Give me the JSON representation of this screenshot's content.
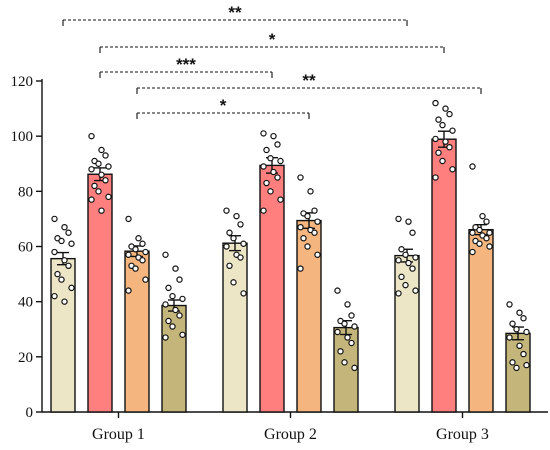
{
  "chart_data": {
    "type": "bar",
    "categories": [
      "Group 1",
      "Group 2",
      "Group 3"
    ],
    "ylim": [
      0,
      120
    ],
    "y_ticks": [
      "0",
      "20",
      "40",
      "60",
      "80",
      "100",
      "120"
    ],
    "grid": false,
    "legend": "none",
    "bar_colors": [
      "#ede6c6",
      "#ff7f7f",
      "#f4b67e",
      "#c4b57b"
    ],
    "series": [
      {
        "values": [
          55.6,
          61.2,
          56.7
        ],
        "error": [
          2.2,
          2.7,
          2.3
        ],
        "points": [
          [
            70,
            67,
            65,
            63,
            62,
            61,
            58,
            55,
            53,
            50,
            48,
            45,
            42,
            40
          ],
          [
            73,
            71,
            68,
            65,
            63,
            61,
            60,
            57,
            56,
            53,
            47,
            43
          ],
          [
            70,
            69,
            65,
            59,
            57,
            56,
            55,
            54,
            52,
            49,
            46,
            44,
            43
          ]
        ]
      },
      {
        "values": [
          86.2,
          89.4,
          98.9
        ],
        "error": [
          2.3,
          2.8,
          2.9
        ],
        "points": [
          [
            100,
            95,
            93,
            91,
            90,
            89,
            88,
            86,
            84,
            82,
            80,
            78,
            77,
            73
          ],
          [
            101,
            100,
            97,
            95,
            92,
            91,
            89,
            87,
            85,
            83,
            80,
            77,
            73
          ],
          [
            112,
            110,
            108,
            106,
            104,
            102,
            99,
            98,
            96,
            94,
            91,
            88,
            85
          ]
        ]
      },
      {
        "values": [
          58.3,
          69.4,
          66.1
        ],
        "error": [
          1.9,
          2.8,
          1.8
        ],
        "points": [
          [
            70,
            63,
            61,
            60,
            59,
            58,
            57,
            56,
            55,
            53,
            52,
            48,
            44
          ],
          [
            85,
            80,
            73,
            72,
            71,
            69,
            67,
            66,
            65,
            63,
            60,
            57,
            52
          ],
          [
            89,
            71,
            69,
            67,
            66,
            65,
            65,
            64,
            63,
            62,
            61,
            60,
            58
          ]
        ]
      },
      {
        "values": [
          38.6,
          30.6,
          28.5
        ],
        "error": [
          2.0,
          2.5,
          2.3
        ],
        "points": [
          [
            57,
            52,
            48,
            45,
            42,
            41,
            39,
            37,
            35,
            33,
            31,
            28,
            27
          ],
          [
            44,
            39,
            35,
            33,
            32,
            31,
            29,
            27,
            25,
            22,
            18,
            16
          ],
          [
            39,
            36,
            34,
            32,
            30,
            29,
            27,
            24,
            21,
            18,
            16,
            17
          ]
        ]
      }
    ],
    "significance": [
      {
        "from_group": 0,
        "from_series": 0,
        "to_group": 2,
        "to_series": 0,
        "label": "**"
      },
      {
        "from_group": 0,
        "from_series": 1,
        "to_group": 2,
        "to_series": 1,
        "label": "*"
      },
      {
        "from_group": 0,
        "from_series": 1,
        "to_group": 1,
        "to_series": 1,
        "label": "***"
      },
      {
        "from_group": 0,
        "from_series": 2,
        "to_group": 2,
        "to_series": 2,
        "label": "**"
      },
      {
        "from_group": 0,
        "from_series": 2,
        "to_group": 1,
        "to_series": 2,
        "label": "*"
      }
    ]
  }
}
